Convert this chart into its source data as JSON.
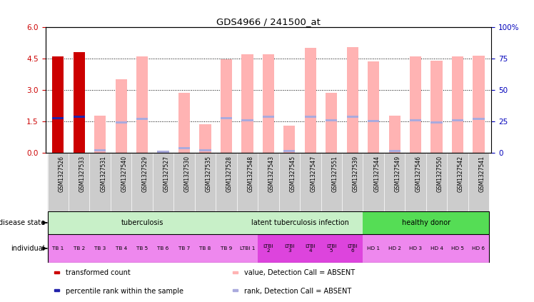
{
  "title": "GDS4966 / 241500_at",
  "samples": [
    "GSM1327526",
    "GSM1327533",
    "GSM1327531",
    "GSM1327540",
    "GSM1327529",
    "GSM1327527",
    "GSM1327530",
    "GSM1327535",
    "GSM1327528",
    "GSM1327548",
    "GSM1327543",
    "GSM1327545",
    "GSM1327547",
    "GSM1327551",
    "GSM1327539",
    "GSM1327544",
    "GSM1327549",
    "GSM1327546",
    "GSM1327550",
    "GSM1327542",
    "GSM1327541"
  ],
  "red_values": [
    4.6,
    4.8,
    null,
    null,
    null,
    null,
    null,
    null,
    null,
    null,
    null,
    null,
    null,
    null,
    null,
    null,
    null,
    null,
    null,
    null,
    null
  ],
  "pink_values": [
    4.6,
    4.8,
    1.75,
    3.5,
    4.6,
    0.05,
    2.85,
    1.35,
    4.45,
    4.7,
    4.7,
    1.3,
    5.0,
    2.85,
    5.05,
    4.35,
    1.75,
    4.6,
    4.4,
    4.6,
    4.65
  ],
  "blue_rank_left": [
    1.65,
    1.7,
    0.12,
    1.45,
    1.6,
    0.05,
    0.2,
    0.1,
    1.65,
    1.55,
    1.72,
    0.08,
    1.7,
    1.55,
    1.7,
    1.5,
    0.08,
    1.55,
    1.45,
    1.55,
    1.6
  ],
  "red_rank_left": [
    1.65,
    1.7,
    null,
    null,
    null,
    null,
    null,
    null,
    null,
    null,
    null,
    null,
    null,
    null,
    null,
    null,
    null,
    null,
    null,
    null,
    null
  ],
  "yticks_left": [
    0,
    1.5,
    3.0,
    4.5,
    6.0
  ],
  "yticks_right": [
    0,
    25,
    50,
    75,
    100
  ],
  "dotted_lines": [
    1.5,
    3.0,
    4.5
  ],
  "ylim_left": [
    0,
    6
  ],
  "ylim_right": [
    0,
    100
  ],
  "bar_width": 0.55,
  "red_color": "#cc0000",
  "pink_color": "#ffb3b3",
  "blue_color": "#aaaadd",
  "dark_blue_color": "#2222aa",
  "right_axis_color": "#0000bb",
  "xlabel_bg_color": "#cccccc",
  "disease_groups": [
    {
      "label": "tuberculosis",
      "start": 0,
      "end": 9,
      "color": "#c8f0c8"
    },
    {
      "label": "latent tuberculosis infection",
      "start": 9,
      "end": 15,
      "color": "#c8f0c8"
    },
    {
      "label": "healthy donor",
      "start": 15,
      "end": 21,
      "color": "#55dd55"
    }
  ],
  "individual_labels": [
    "TB 1",
    "TB 2",
    "TB 3",
    "TB 4",
    "TB 5",
    "TB 6",
    "TB 7",
    "TB 8",
    "TB 9",
    "LTBI 1",
    "LTBI\n2",
    "LTBI\n3",
    "LTBI\n4",
    "LTBI\n5",
    "LTBI\n6",
    "HD 1",
    "HD 2",
    "HD 3",
    "HD 4",
    "HD 5",
    "HD 6"
  ],
  "individual_is_ltbi_dark": [
    false,
    false,
    false,
    false,
    false,
    false,
    false,
    false,
    false,
    false,
    true,
    true,
    true,
    true,
    true,
    false,
    false,
    false,
    false,
    false,
    false
  ],
  "indiv_light_color": "#ee88ee",
  "indiv_dark_color": "#dd44dd"
}
